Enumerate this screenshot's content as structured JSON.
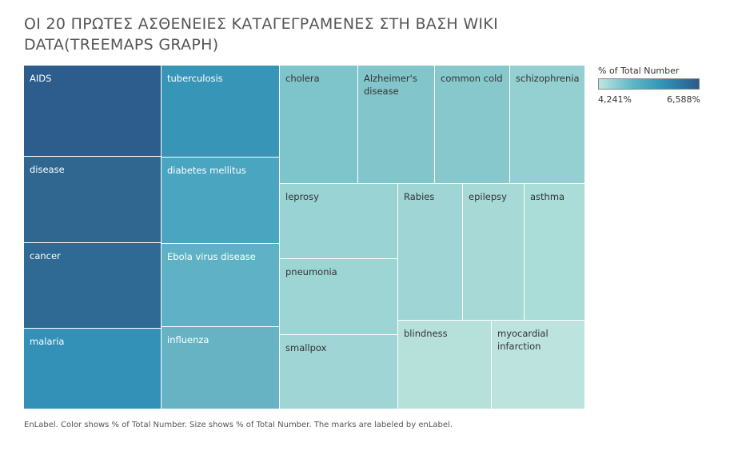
{
  "title": "ΟΙ 20 ΠΡΩΤΕΣ ΑΣΘΕΝΕΙΕΣ ΚΑΤΑΓΕΓΡΑΜΕΝΕΣ ΣΤΗ ΒΑΣΗ WIKI DATA(TREEMAPS GRAPH)",
  "legend": {
    "title": "% of Total Number",
    "min_label": "4,241%",
    "max_label": "6,588%",
    "min_color": "#bfe6e1",
    "max_color": "#2a5a8a"
  },
  "footer": "EnLabel.  Color shows % of Total Number.  Size shows % of Total Number.  The marks are labeled by enLabel.",
  "chart_data": {
    "type": "treemap",
    "measure": "% of Total Number",
    "color_range": [
      4.241,
      6.588
    ],
    "items": [
      {
        "label": "AIDS",
        "value": 6.588,
        "color": "#2c5d8c"
      },
      {
        "label": "disease",
        "value": 6.1,
        "color": "#2f6791"
      },
      {
        "label": "cancer",
        "value": 6.0,
        "color": "#2e6a93"
      },
      {
        "label": "malaria",
        "value": 5.8,
        "color": "#3390b6"
      },
      {
        "label": "tuberculosis",
        "value": 5.6,
        "color": "#3796b8"
      },
      {
        "label": "diabetes mellitus",
        "value": 5.3,
        "color": "#4aa5c1"
      },
      {
        "label": "Ebola virus disease",
        "value": 5.1,
        "color": "#5fb1c5"
      },
      {
        "label": "influenza",
        "value": 5.0,
        "color": "#67b3c4"
      },
      {
        "label": "cholera",
        "value": 4.9,
        "color": "#7ec4cb"
      },
      {
        "label": "Alzheimer's disease",
        "value": 4.85,
        "color": "#82c5cb"
      },
      {
        "label": "common cold",
        "value": 4.8,
        "color": "#87c8cd"
      },
      {
        "label": "schizophrenia",
        "value": 4.75,
        "color": "#94cfd1"
      },
      {
        "label": "leprosy",
        "value": 4.6,
        "color": "#99d3d3"
      },
      {
        "label": "pneumonia",
        "value": 4.55,
        "color": "#9cd5d4"
      },
      {
        "label": "smallpox",
        "value": 4.55,
        "color": "#a0d5d5"
      },
      {
        "label": "Rabies",
        "value": 4.5,
        "color": "#9fd5d4"
      },
      {
        "label": "epilepsy",
        "value": 4.45,
        "color": "#a7dad7"
      },
      {
        "label": "asthma",
        "value": 4.4,
        "color": "#aadcd8"
      },
      {
        "label": "blindness",
        "value": 4.3,
        "color": "#b6e1db"
      },
      {
        "label": "myocardial infarction",
        "value": 4.241,
        "color": "#bce3dd"
      }
    ]
  }
}
